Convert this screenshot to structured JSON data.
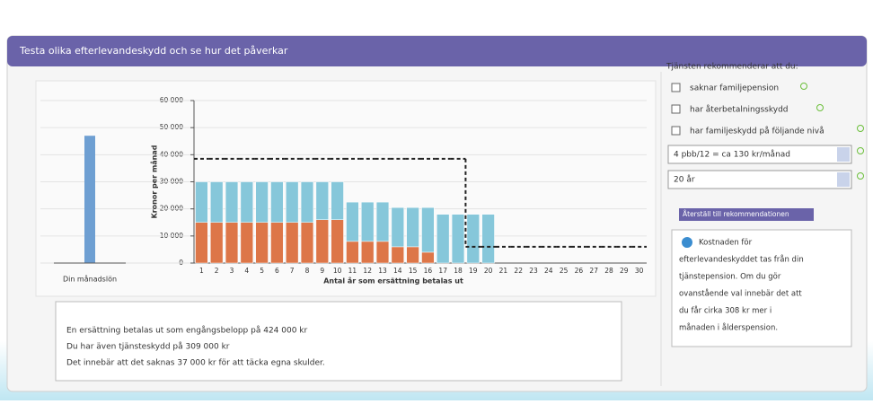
{
  "header": {
    "title": "Testa olika efterlevandeskydd och se hur det påverkar"
  },
  "chart_data": {
    "type": "bar",
    "stacked": true,
    "y_label": "Kronor per månad",
    "x_label": "Antal år som ersättning betalas ut",
    "categories": [
      "1",
      "2",
      "3",
      "4",
      "5",
      "6",
      "7",
      "8",
      "9",
      "10",
      "11",
      "12",
      "13",
      "14",
      "15",
      "16",
      "17",
      "18",
      "19",
      "20",
      "21",
      "22",
      "23",
      "24",
      "25",
      "26",
      "27",
      "28",
      "29",
      "30"
    ],
    "series": [
      {
        "color": "#dd7648",
        "values": [
          15000,
          15000,
          15000,
          15000,
          15000,
          15000,
          15000,
          15000,
          16000,
          16000,
          8000,
          8000,
          8000,
          6000,
          6000,
          4000,
          0,
          0,
          0,
          0,
          0,
          0,
          0,
          0,
          0,
          0,
          0,
          0,
          0,
          0
        ]
      },
      {
        "color": "#86c7da",
        "values": [
          15000,
          15000,
          15000,
          15000,
          15000,
          15000,
          15000,
          15000,
          14000,
          14000,
          14500,
          14500,
          14500,
          14500,
          14500,
          16500,
          18000,
          18000,
          18000,
          18000,
          0,
          0,
          0,
          0,
          0,
          0,
          0,
          0,
          0,
          0
        ]
      },
      {
        "type": "line",
        "dashed": true,
        "color": "#222222",
        "values": [
          38500,
          38500,
          38500,
          38500,
          38500,
          38500,
          38500,
          38500,
          38500,
          38500,
          38500,
          38500,
          38500,
          38500,
          38500,
          38500,
          38500,
          38500,
          6000,
          6000,
          6000,
          6000,
          6000,
          6000,
          6000,
          6000,
          6000,
          6000,
          6000,
          6000
        ]
      }
    ],
    "ylim": [
      0,
      60000
    ],
    "yticks": [
      0,
      {
        "value": 10000,
        "label": "10 000"
      },
      {
        "value": 20000,
        "label": "20 000"
      },
      {
        "value": 30000,
        "label": "30 000"
      },
      {
        "value": 40000,
        "label": "40 000"
      },
      {
        "value": 50000,
        "label": "50 000"
      },
      {
        "value": 60000,
        "label": "60 000"
      }
    ],
    "grid": true,
    "side_chart": {
      "label": "Din månadslön",
      "value": 47000,
      "color": "#6e9fd2"
    }
  },
  "summary": {
    "lines": [
      "En ersättning betalas ut som engångsbelopp på 424 000 kr",
      "Du har även tjänsteskydd på 309 000 kr",
      "Det innebär att det saknas 37 000 kr för att täcka egna skulder."
    ]
  },
  "panel": {
    "intro": "Tjänsten rekommenderar att du:",
    "options": [
      "saknar familjepension",
      "har återbetalningsskydd",
      "har familjeskydd på följande nivå"
    ],
    "level_select": "4 pbb/12 = ca 130 kr/månad",
    "years_select": "20 år",
    "reset_button": "Återställ till rekommendationen",
    "info_lines": [
      "Kostnaden för",
      "efterlevandeskyddet tas från din",
      "tjänstepension. Om du gör",
      "ovanstående val innebär det att",
      "du får cirka 308 kr mer i",
      "månaden i ålderspension."
    ]
  }
}
